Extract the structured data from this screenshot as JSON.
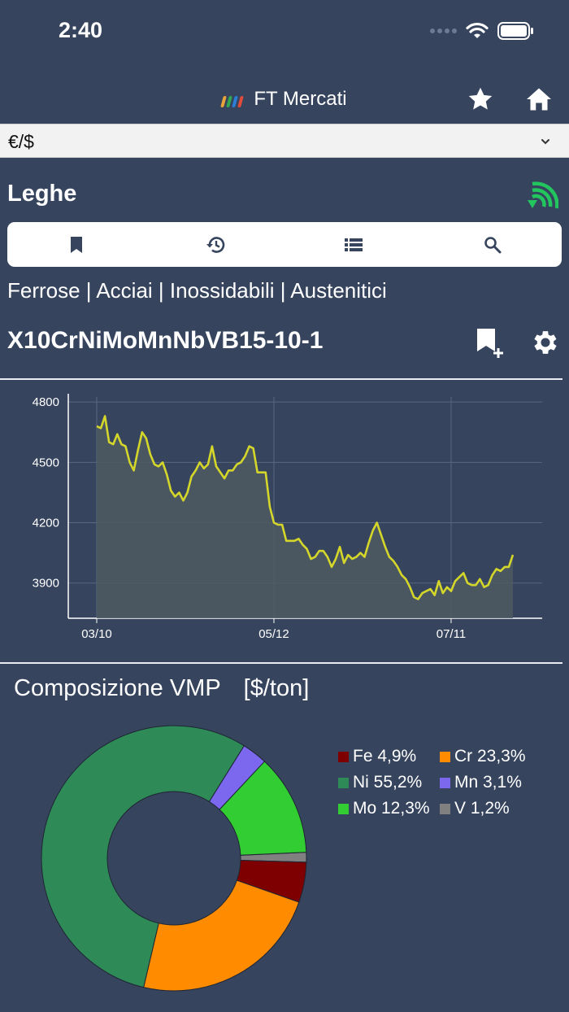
{
  "status_bar": {
    "time": "2:40"
  },
  "nav": {
    "title": "FT Mercati",
    "logo_colors": [
      "#e8a33a",
      "#2fa84f",
      "#2d7fd6",
      "#e24b3b"
    ]
  },
  "currency": {
    "selected": "€/$"
  },
  "section": {
    "title": "Leghe"
  },
  "breadcrumb": "Ferrose | Acciai | Inossidabili | Austenitici",
  "alloy": {
    "name": "X10CrNiMoMnNbVB15-10-1"
  },
  "colors": {
    "background": "#36445e",
    "feed_green": "#22c55e",
    "line": "#d4d62a"
  },
  "chart_data": {
    "type": "area",
    "title": "",
    "xlabel": "",
    "ylabel": "",
    "ylim": [
      3725,
      4825
    ],
    "y_ticks": [
      3900,
      4200,
      4500,
      4800
    ],
    "x_ticks": [
      "03/10",
      "05/12",
      "07/11"
    ],
    "grid": true,
    "series": [
      {
        "values": [
          4680,
          4670,
          4730,
          4600,
          4590,
          4640,
          4590,
          4580,
          4500,
          4460,
          4560,
          4650,
          4620,
          4540,
          4490,
          4480,
          4500,
          4440,
          4360,
          4330,
          4350,
          4310,
          4350,
          4430,
          4460,
          4500,
          4470,
          4490,
          4580,
          4480,
          4450,
          4420,
          4460,
          4460,
          4490,
          4500,
          4530,
          4580,
          4570,
          4450,
          4450,
          4450,
          4280,
          4200,
          4190,
          4190,
          4110,
          4110,
          4110,
          4120,
          4090,
          4070,
          4020,
          4030,
          4060,
          4060,
          4030,
          3980,
          4020,
          4080,
          4000,
          4040,
          4020,
          4030,
          4050,
          4030,
          4100,
          4160,
          4200,
          4140,
          4080,
          4030,
          4010,
          3980,
          3940,
          3920,
          3880,
          3830,
          3820,
          3850,
          3860,
          3870,
          3840,
          3910,
          3850,
          3880,
          3860,
          3910,
          3930,
          3950,
          3900,
          3890,
          3890,
          3920,
          3880,
          3890,
          3940,
          3970,
          3960,
          3980,
          3980,
          4040
        ]
      }
    ]
  },
  "composition": {
    "title": "Composizione VMP",
    "unit": "[$/ton]",
    "chart_data": {
      "type": "pie",
      "categories": [
        "Fe",
        "Cr",
        "Ni",
        "Mn",
        "Mo",
        "V"
      ],
      "values": [
        4.9,
        23.3,
        55.2,
        3.1,
        12.3,
        1.2
      ],
      "labels": [
        "Fe 4,9%",
        "Cr 23,3%",
        "Ni 55,2%",
        "Mn 3,1%",
        "Mo 12,3%",
        "V 1,2%"
      ],
      "colors": [
        "#7f0000",
        "#ff8c00",
        "#2e8b57",
        "#7b68ee",
        "#32cd32",
        "#808080"
      ],
      "order_clockwise_from_east": [
        "V",
        "Fe",
        "Cr",
        "Ni",
        "Mn",
        "Mo"
      ]
    }
  }
}
